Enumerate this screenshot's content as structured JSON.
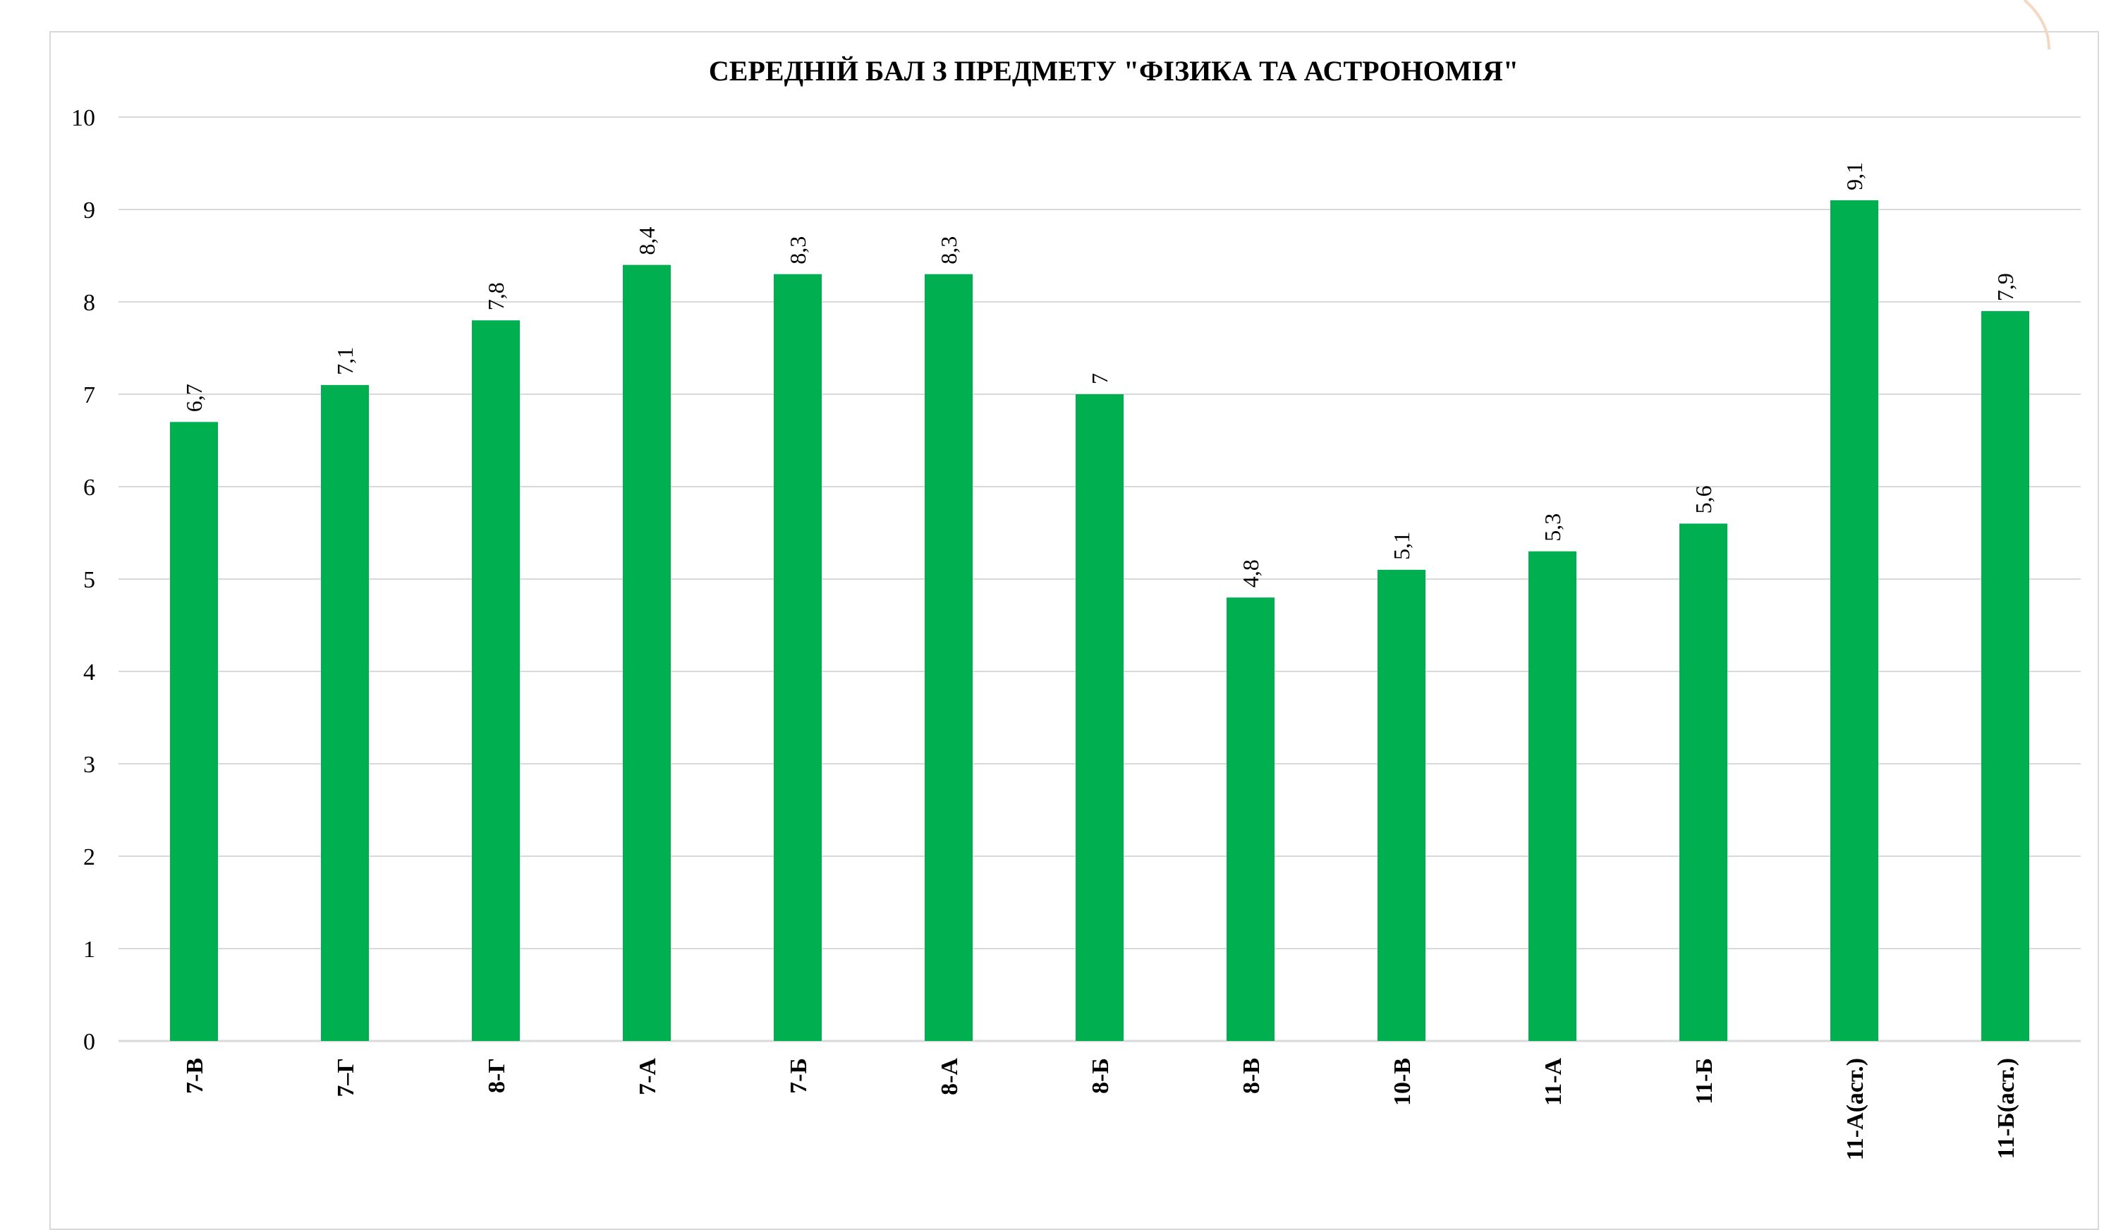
{
  "chart_data": {
    "type": "bar",
    "title": "СЕРЕДНІЙ БАЛ З ПРЕДМЕТУ \"ФІЗИКА ТА АСТРОНОМІЯ\"",
    "categories": [
      "7-В",
      "7–Г",
      "8-Г",
      "7-А",
      "7-Б",
      "8-А",
      "8-Б",
      "8-В",
      "10-В",
      "11-А",
      "11-Б",
      "11-А(аст.)",
      "11-Б(аст.)"
    ],
    "values": [
      6.7,
      7.1,
      7.8,
      8.4,
      8.3,
      8.3,
      7,
      4.8,
      5.1,
      5.3,
      5.6,
      9.1,
      7.9
    ],
    "data_labels": [
      "6,7",
      "7,1",
      "7,8",
      "8,4",
      "8,3",
      "8,3",
      "7",
      "4,8",
      "5,1",
      "5,3",
      "5,6",
      "9,1",
      "7,9"
    ],
    "ylim": [
      0,
      10
    ],
    "yticks": [
      "0",
      "1",
      "2",
      "3",
      "4",
      "5",
      "6",
      "7",
      "8",
      "9",
      "10"
    ],
    "xlabel": "",
    "ylabel": "",
    "grid": true,
    "legend": "none",
    "colors": {
      "bar": "#00b050",
      "grid": "#d9d9d9"
    }
  }
}
